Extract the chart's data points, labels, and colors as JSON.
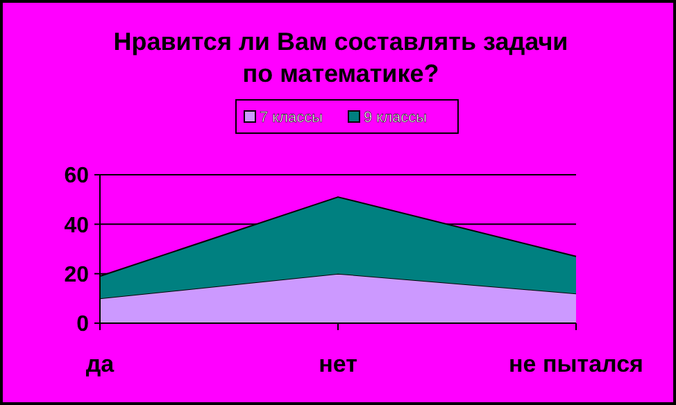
{
  "chart_data": {
    "type": "area",
    "stacked": true,
    "title": "Нравится ли Вам составлять задачи\nпо математике?",
    "categories": [
      "да",
      "нет",
      "не пытался"
    ],
    "series": [
      {
        "name": "7 классы",
        "color": "#cc99ff",
        "values": [
          10,
          20,
          12
        ]
      },
      {
        "name": "9 классы",
        "color": "#008080",
        "values": [
          9,
          31,
          15
        ]
      }
    ],
    "ylim": [
      0,
      60
    ],
    "yticks": [
      0,
      20,
      40,
      60
    ],
    "grid": "y",
    "legend": "top"
  }
}
